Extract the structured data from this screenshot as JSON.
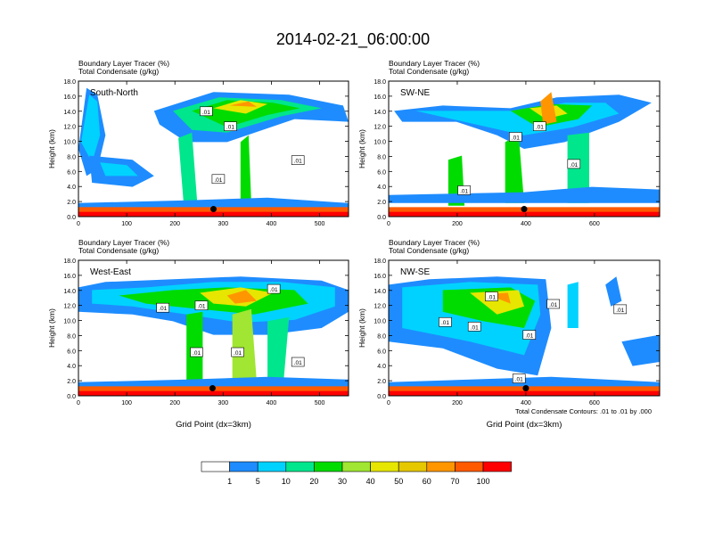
{
  "page": {
    "title": "2014-02-21_06:00:00",
    "contour_note": "Total Condensate Contours: .01 to .01 by .000",
    "xlabel": "Grid Point (dx=3km)"
  },
  "colors": {
    "levels": [
      "#ffffff",
      "#1e8cff",
      "#00d2ff",
      "#00e68c",
      "#00dc00",
      "#a0e632",
      "#e6e600",
      "#e6c800",
      "#ff9600",
      "#ff5a00",
      "#ff0000"
    ],
    "contour": "#000000"
  },
  "chart_data": [
    {
      "type": "heatmap",
      "panel_label": "South-North",
      "heading_1": "Boundary Layer Tracer   (%)",
      "heading_2": "Total Condensate   (g/kg)",
      "ylabel": "Height (km)",
      "xlabel": "",
      "xlim": [
        0,
        560
      ],
      "ylim": [
        0,
        18
      ],
      "xticks": [
        0,
        100,
        200,
        300,
        400,
        500
      ],
      "yticks": [
        "0.0",
        "2.0",
        "4.0",
        "6.0",
        "8.0",
        "10.0",
        "12.0",
        "14.0",
        "16.0",
        "18.0"
      ],
      "contour_labels": [
        {
          "text": ".01",
          "x": 265,
          "y": 14.0
        },
        {
          "text": ".01",
          "x": 315,
          "y": 12.0
        },
        {
          "text": ".01",
          "x": 290,
          "y": 5.0
        },
        {
          "text": ".01",
          "x": 455,
          "y": 7.5
        }
      ],
      "marker": {
        "x": 280,
        "y": 1.0
      }
    },
    {
      "type": "heatmap",
      "panel_label": "SW-NE",
      "heading_1": "Boundary Layer Tracer   (%)",
      "heading_2": "Total Condensate   (g/kg)",
      "ylabel": "Height (km)",
      "xlabel": "",
      "xlim": [
        0,
        790
      ],
      "ylim": [
        0,
        18
      ],
      "xticks": [
        0,
        200,
        400,
        600
      ],
      "yticks": [
        "0.0",
        "2.0",
        "4.0",
        "6.0",
        "8.0",
        "10.0",
        "12.0",
        "14.0",
        "16.0",
        "18.0"
      ],
      "contour_labels": [
        {
          "text": ".01",
          "x": 370,
          "y": 10.6
        },
        {
          "text": ".01",
          "x": 440,
          "y": 12.0
        },
        {
          "text": ".01",
          "x": 540,
          "y": 7.0
        },
        {
          "text": ".01",
          "x": 220,
          "y": 3.5
        }
      ],
      "marker": {
        "x": 395,
        "y": 1.0
      }
    },
    {
      "type": "heatmap",
      "panel_label": "West-East",
      "heading_1": "Boundary Layer Tracer   (%)",
      "heading_2": "Total Condensate   (g/kg)",
      "ylabel": "Height (km)",
      "xlabel": "Grid Point (dx=3km)",
      "xlim": [
        0,
        560
      ],
      "ylim": [
        0,
        18
      ],
      "xticks": [
        0,
        100,
        200,
        300,
        400,
        500
      ],
      "yticks": [
        "0.0",
        "2.0",
        "4.0",
        "6.0",
        "8.0",
        "10.0",
        "12.0",
        "14.0",
        "16.0",
        "18.0"
      ],
      "contour_labels": [
        {
          "text": ".01",
          "x": 175,
          "y": 11.7
        },
        {
          "text": ".01",
          "x": 255,
          "y": 12.0
        },
        {
          "text": ".01",
          "x": 405,
          "y": 14.2
        },
        {
          "text": ".01",
          "x": 245,
          "y": 5.8
        },
        {
          "text": ".01",
          "x": 330,
          "y": 5.8
        },
        {
          "text": ".01",
          "x": 455,
          "y": 4.5
        }
      ],
      "marker": {
        "x": 278,
        "y": 1.0
      }
    },
    {
      "type": "heatmap",
      "panel_label": "NW-SE",
      "heading_1": "Boundary Layer Tracer   (%)",
      "heading_2": "Total Condensate   (g/kg)",
      "ylabel": "Height (km)",
      "xlabel": "Grid Point (dx=3km)",
      "xlim": [
        0,
        790
      ],
      "ylim": [
        0,
        18
      ],
      "xticks": [
        0,
        200,
        400,
        600
      ],
      "yticks": [
        "0.0",
        "2.0",
        "4.0",
        "6.0",
        "8.0",
        "10.0",
        "12.0",
        "14.0",
        "16.0",
        "18.0"
      ],
      "contour_labels": [
        {
          "text": ".01",
          "x": 300,
          "y": 13.2
        },
        {
          "text": ".01",
          "x": 480,
          "y": 12.2
        },
        {
          "text": ".01",
          "x": 165,
          "y": 9.8
        },
        {
          "text": ".01",
          "x": 250,
          "y": 9.2
        },
        {
          "text": ".01",
          "x": 410,
          "y": 8.1
        },
        {
          "text": ".01",
          "x": 675,
          "y": 11.5
        },
        {
          "text": ".01",
          "x": 380,
          "y": 2.3
        }
      ],
      "marker": {
        "x": 400,
        "y": 1.0
      }
    }
  ],
  "legend": {
    "labels": [
      "1",
      "5",
      "10",
      "20",
      "30",
      "40",
      "50",
      "60",
      "70",
      "100"
    ]
  }
}
